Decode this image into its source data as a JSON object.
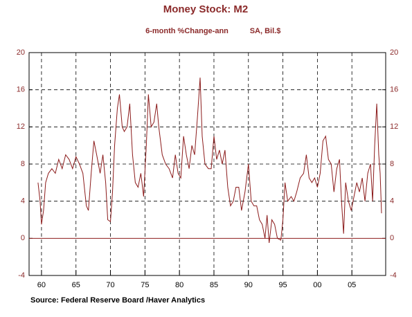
{
  "chart_data": {
    "type": "line",
    "title": "Money Stock: M2",
    "subtitle": "6-month %Change-ann",
    "subtitle_right": "SA, Bil.$",
    "source": "Source:  Federal Reserve Board /Haver Analytics",
    "color": "#8b1a1a",
    "grid": true,
    "xlim": [
      1958.2,
      2009.9
    ],
    "ylim": [
      -4,
      20
    ],
    "yticks": [
      -4,
      0,
      4,
      8,
      12,
      16,
      20
    ],
    "xticks": [
      {
        "value": 1960,
        "label": "60"
      },
      {
        "value": 1965,
        "label": "65"
      },
      {
        "value": 1970,
        "label": "70"
      },
      {
        "value": 1975,
        "label": "75"
      },
      {
        "value": 1980,
        "label": "80"
      },
      {
        "value": 1985,
        "label": "85"
      },
      {
        "value": 1990,
        "label": "90"
      },
      {
        "value": 1995,
        "label": "95"
      },
      {
        "value": 2000,
        "label": "00"
      },
      {
        "value": 2005,
        "label": "05"
      }
    ],
    "x": [
      1959.5,
      1959.8,
      1960.0,
      1960.3,
      1960.6,
      1961,
      1961.5,
      1962,
      1962.5,
      1963,
      1963.5,
      1964,
      1964.5,
      1965,
      1965.5,
      1966,
      1966.5,
      1966.8,
      1967.2,
      1967.6,
      1968,
      1968.5,
      1968.9,
      1969.3,
      1969.6,
      1970,
      1970.3,
      1970.6,
      1971,
      1971.3,
      1971.7,
      1972,
      1972.4,
      1972.8,
      1973.2,
      1973.6,
      1974,
      1974.4,
      1974.8,
      1975.2,
      1975.5,
      1975.9,
      1976.3,
      1976.7,
      1977,
      1977.5,
      1978,
      1978.5,
      1979,
      1979.4,
      1979.8,
      1980.2,
      1980.6,
      1981,
      1981.4,
      1981.8,
      1982.2,
      1982.6,
      1983,
      1983.3,
      1983.7,
      1984.2,
      1984.6,
      1985,
      1985.4,
      1985.8,
      1986.2,
      1986.6,
      1987,
      1987.4,
      1987.8,
      1988.2,
      1988.6,
      1989,
      1989.5,
      1990,
      1990.4,
      1990.8,
      1991.2,
      1991.6,
      1992,
      1992.4,
      1992.7,
      1993,
      1993.4,
      1993.8,
      1994.2,
      1994.7,
      1995,
      1995.3,
      1995.7,
      1996.2,
      1996.6,
      1997,
      1997.5,
      1998,
      1998.4,
      1998.8,
      1999.2,
      1999.6,
      2000,
      2000.4,
      2000.8,
      2001.2,
      2001.6,
      2002,
      2002.4,
      2002.8,
      2003.2,
      2003.5,
      2003.8,
      2004.1,
      2004.5,
      2004.9,
      2005.3,
      2005.7,
      2006.1,
      2006.5,
      2006.9,
      2007.3,
      2007.7,
      2008,
      2008.3,
      2008.6,
      2008.9,
      2009.1,
      2009.3
    ],
    "values": [
      6,
      4,
      1.5,
      3,
      6,
      7,
      7.5,
      7,
      8.5,
      7.5,
      9,
      8.5,
      7.5,
      8.8,
      8,
      7,
      3.5,
      3,
      7,
      10.5,
      9,
      7,
      9,
      6,
      2,
      1.8,
      5,
      10,
      14,
      15.5,
      12,
      11.5,
      12,
      14.5,
      9,
      6,
      5.5,
      7,
      4.5,
      10,
      15.5,
      12,
      12.5,
      14.5,
      12,
      9,
      8,
      7.5,
      6.5,
      9,
      7,
      6.5,
      11,
      9,
      7.5,
      10,
      9,
      13,
      17.3,
      11,
      8,
      7.5,
      7.5,
      11,
      8.5,
      9.5,
      8,
      9.5,
      5.5,
      3.5,
      4,
      5.5,
      5.5,
      3,
      5,
      8,
      4,
      3.5,
      3.5,
      2,
      1.5,
      0,
      2.5,
      -0.5,
      2,
      1.5,
      0,
      -0.2,
      2,
      6,
      4,
      4.5,
      4,
      5,
      6.5,
      7,
      9,
      6.5,
      6,
      6.5,
      5.5,
      7,
      10.5,
      11,
      8.5,
      8,
      5,
      7.5,
      8.5,
      4,
      0.5,
      6,
      4,
      3,
      4.5,
      6,
      5,
      6.5,
      4,
      7,
      8,
      4,
      10,
      14.5,
      9,
      7,
      2.7
    ]
  }
}
